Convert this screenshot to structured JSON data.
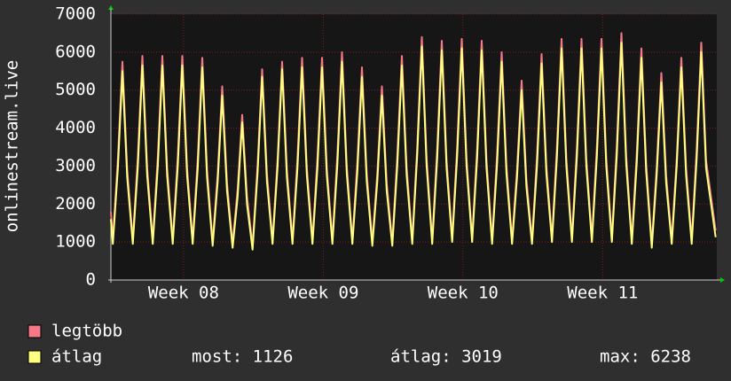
{
  "chart_data": {
    "type": "line",
    "ylabel": "onlinestream.live",
    "x": [
      0,
      0.1,
      0.35,
      0.58,
      0.82,
      1.1,
      1.35,
      1.58,
      1.82,
      2.1,
      2.35,
      2.58,
      2.82,
      3.1,
      3.35,
      3.58,
      3.82,
      4.1,
      4.35,
      4.58,
      4.82,
      5.1,
      5.35,
      5.58,
      5.82,
      6.1,
      6.35,
      6.58,
      6.82,
      7.1,
      7.35,
      7.58,
      7.82,
      8.1,
      8.35,
      8.58,
      8.82,
      9.1,
      9.35,
      9.58,
      9.82,
      10.1,
      10.35,
      10.58,
      10.82,
      11.1,
      11.35,
      11.58,
      11.82,
      12.1,
      12.35,
      12.58,
      12.82,
      13.1,
      13.35,
      13.58,
      13.82,
      14.1,
      14.35,
      14.58,
      14.82,
      15.1,
      15.35,
      15.58,
      15.82,
      16.1,
      16.35,
      16.58,
      16.82,
      17.1,
      17.35,
      17.58,
      17.82,
      18.1,
      18.35,
      18.58,
      18.82,
      19.1,
      19.35,
      19.58,
      19.82,
      20.1,
      20.35,
      20.58,
      20.82,
      21.1,
      21.35,
      21.58,
      21.82,
      22.1,
      22.35,
      22.58,
      22.82,
      23.1,
      23.35,
      23.58,
      23.82,
      24.1,
      24.35,
      24.58,
      24.82,
      25.1,
      25.35,
      25.58,
      25.82,
      26.1,
      26.35,
      26.58,
      26.82,
      27.1,
      27.35,
      27.58,
      27.82,
      28.1,
      28.35,
      28.58,
      28.82,
      29.1,
      29.35,
      29.58,
      29.82,
      30.3
    ],
    "xlim": [
      0,
      30.36
    ],
    "xticks": [
      {
        "value": 3.64,
        "label": "Week 08"
      },
      {
        "value": 10.64,
        "label": "Week 09"
      },
      {
        "value": 17.64,
        "label": "Week 10"
      },
      {
        "value": 24.64,
        "label": "Week 11"
      }
    ],
    "ylim": [
      0,
      7000
    ],
    "yticks": [
      0,
      1000,
      2000,
      3000,
      4000,
      5000,
      6000,
      7000
    ],
    "grid": true,
    "series": [
      {
        "name": "legtöbb",
        "color": "#f57a87",
        "values": [
          1800,
          1050,
          3200,
          5750,
          2900,
          1050,
          3250,
          5900,
          2950,
          1050,
          3250,
          5900,
          2950,
          1050,
          3250,
          5900,
          2950,
          1050,
          3200,
          5850,
          2900,
          1000,
          2800,
          5100,
          2550,
          950,
          2400,
          4350,
          2200,
          900,
          3050,
          5550,
          2800,
          1050,
          3150,
          5750,
          2900,
          1050,
          3200,
          5850,
          2950,
          1050,
          3200,
          5850,
          2950,
          1050,
          3300,
          6000,
          3000,
          1050,
          3100,
          5600,
          2800,
          1000,
          2800,
          5100,
          2550,
          1000,
          3250,
          5900,
          2950,
          1050,
          3500,
          6400,
          3200,
          1050,
          3450,
          6300,
          3150,
          1100,
          3500,
          6350,
          3200,
          1100,
          3450,
          6300,
          3150,
          1050,
          3300,
          6000,
          3000,
          1050,
          2900,
          5250,
          2650,
          1050,
          3250,
          5950,
          3000,
          1100,
          3500,
          6350,
          3200,
          1100,
          3500,
          6350,
          3200,
          1100,
          3500,
          6350,
          3200,
          1100,
          3550,
          6500,
          3250,
          1050,
          3350,
          6100,
          3050,
          950,
          3000,
          5450,
          2750,
          1050,
          3200,
          5850,
          2950,
          1050,
          3450,
          6250,
          3150,
          1300
        ]
      },
      {
        "name": "átlag",
        "color": "#ffff80",
        "values": [
          1600,
          950,
          2950,
          5500,
          2700,
          950,
          3000,
          5650,
          2750,
          950,
          3000,
          5650,
          2750,
          950,
          3000,
          5650,
          2750,
          950,
          2950,
          5600,
          2700,
          900,
          2600,
          4850,
          2350,
          850,
          2200,
          4150,
          2000,
          800,
          2850,
          5350,
          2600,
          950,
          2950,
          5550,
          2700,
          950,
          2950,
          5600,
          2750,
          950,
          2950,
          5600,
          2750,
          950,
          3050,
          5750,
          2800,
          950,
          2850,
          5350,
          2600,
          900,
          2600,
          4850,
          2350,
          900,
          3000,
          5650,
          2750,
          950,
          3300,
          6150,
          3000,
          950,
          3200,
          6050,
          2950,
          1000,
          3250,
          6100,
          3000,
          1000,
          3200,
          6050,
          2950,
          950,
          3050,
          5750,
          2800,
          950,
          2700,
          5000,
          2450,
          950,
          3000,
          5700,
          2800,
          1000,
          3250,
          6100,
          3000,
          1000,
          3250,
          6100,
          3000,
          1000,
          3250,
          6100,
          3000,
          1000,
          3300,
          6250,
          3050,
          950,
          3100,
          5850,
          2850,
          850,
          2800,
          5200,
          2550,
          950,
          3000,
          5600,
          2750,
          950,
          3200,
          6000,
          2950,
          1126
        ]
      }
    ],
    "stats": [
      "most: 1126",
      "átlag: 3019",
      "max: 6238"
    ]
  }
}
